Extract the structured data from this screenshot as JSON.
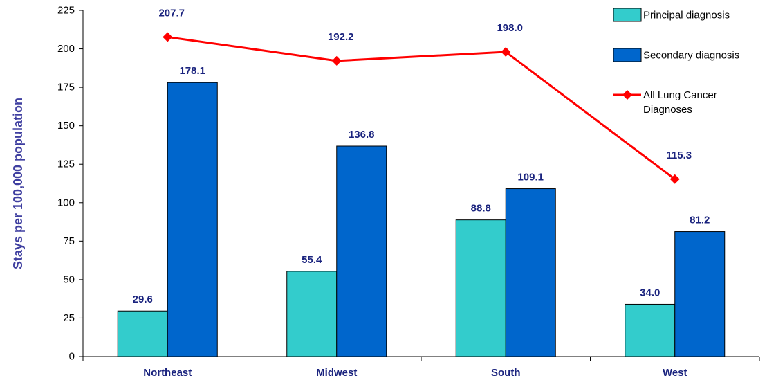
{
  "chart_data": {
    "type": "bar",
    "categories": [
      "Northeast",
      "Midwest",
      "South",
      "West"
    ],
    "series": [
      {
        "name": "Principal diagnosis",
        "type": "bar",
        "color": "#33cccc",
        "values": [
          29.6,
          55.4,
          88.8,
          34.0
        ],
        "labels": [
          "29.6",
          "55.4",
          "88.8",
          "34.0"
        ]
      },
      {
        "name": "Secondary diagnosis",
        "type": "bar",
        "color": "#0066cc",
        "values": [
          178.1,
          136.8,
          109.1,
          81.2
        ],
        "labels": [
          "178.1",
          "136.8",
          "109.1",
          "81.2"
        ]
      },
      {
        "name": "All Lung Cancer Diagnoses",
        "name_lines": [
          "All Lung Cancer",
          "Diagnoses"
        ],
        "type": "line",
        "color": "#ff0000",
        "values": [
          207.7,
          192.2,
          198.0,
          115.3
        ],
        "labels": [
          "207.7",
          "192.2",
          "198.0",
          "115.3"
        ]
      }
    ],
    "ylabel": "Stays per 100,000 population",
    "xlabel": "",
    "ylim": [
      0,
      225
    ],
    "yticks": [
      "0",
      "25",
      "50",
      "75",
      "100",
      "125",
      "150",
      "175",
      "200",
      "225"
    ],
    "grid": false,
    "legend_position": "top-right",
    "label_color": "#1a237e",
    "ytitle_color": "#3f3fa0"
  }
}
